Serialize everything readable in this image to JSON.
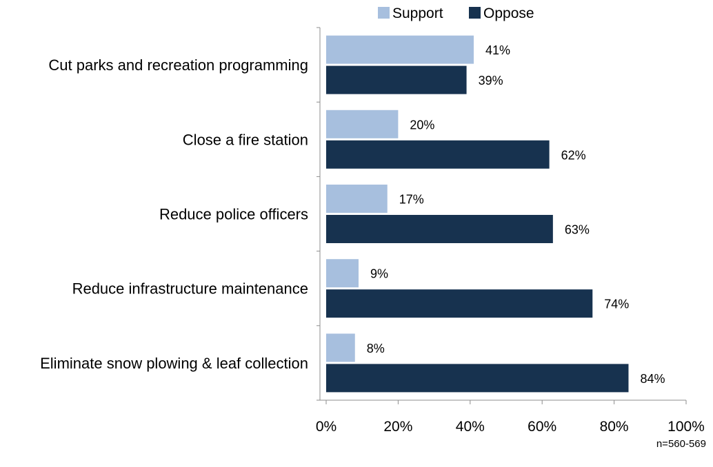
{
  "chart_data": {
    "type": "bar",
    "orientation": "horizontal",
    "categories": [
      "Cut parks and recreation programming",
      "Close a fire station",
      "Reduce police officers",
      "Reduce infrastructure maintenance",
      "Eliminate snow plowing & leaf collection"
    ],
    "series": [
      {
        "name": "Support",
        "values": [
          41,
          20,
          17,
          9,
          8
        ],
        "color": "#a7bfde"
      },
      {
        "name": "Oppose",
        "values": [
          39,
          62,
          63,
          74,
          84
        ],
        "color": "#17324f"
      }
    ],
    "data_labels": [
      [
        "41%",
        "20%",
        "17%",
        "9%",
        "8%"
      ],
      [
        "39%",
        "62%",
        "63%",
        "74%",
        "84%"
      ]
    ],
    "xlim": [
      0,
      100
    ],
    "x_ticks": [
      0,
      20,
      40,
      60,
      80,
      100
    ],
    "x_tick_labels": [
      "0%",
      "20%",
      "40%",
      "60%",
      "80%",
      "100%"
    ],
    "legend_position": "top",
    "grid": false
  },
  "note": "n=560-569"
}
